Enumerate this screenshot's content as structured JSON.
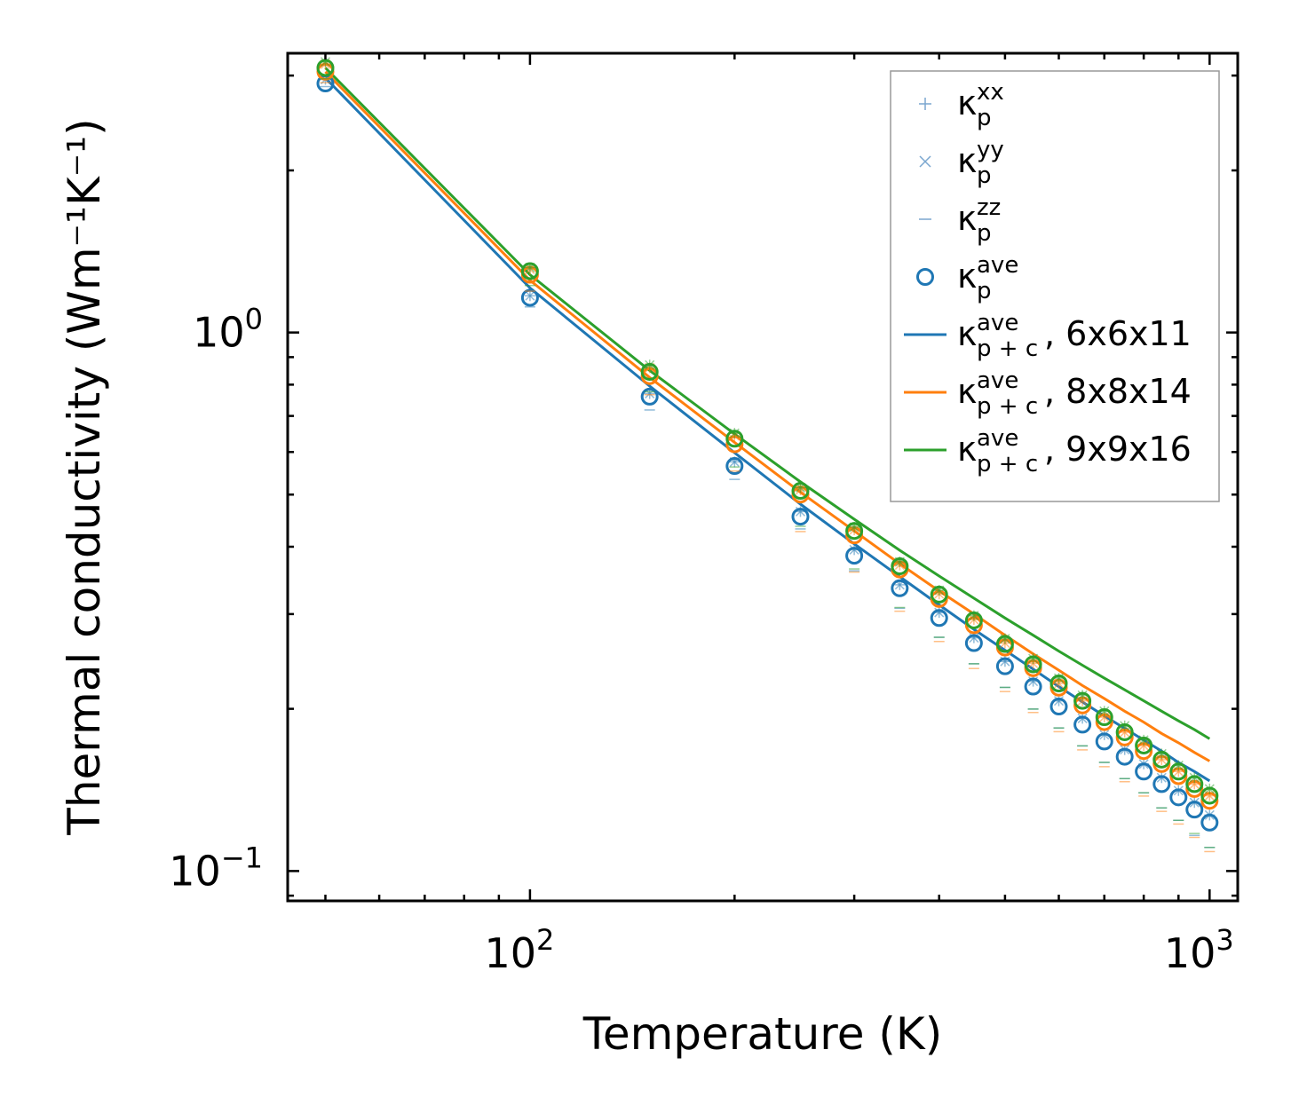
{
  "chart_data": {
    "type": "scatter",
    "xscale": "log",
    "yscale": "log",
    "xlim": [
      44,
      1100
    ],
    "ylim": [
      0.088,
      3.3
    ],
    "xlabel": "Temperature (K)",
    "ylabel": "Thermal conductivity (Wm⁻¹K⁻¹)",
    "x_ticks": [
      {
        "value": 100,
        "base": "10",
        "exp": "2"
      },
      {
        "value": 1000,
        "base": "10",
        "exp": "3"
      }
    ],
    "y_ticks": [
      {
        "value": 0.1,
        "base": "10",
        "exp": "−1"
      },
      {
        "value": 1,
        "base": "10",
        "exp": "0"
      }
    ],
    "colors": {
      "blue": "#1f77b4",
      "orange": "#ff7f0e",
      "green": "#2ca02c"
    },
    "x": [
      50,
      100,
      150,
      200,
      250,
      300,
      350,
      400,
      450,
      500,
      550,
      600,
      650,
      700,
      750,
      800,
      850,
      900,
      950,
      1000
    ],
    "points": [
      {
        "grid": "6x6x11",
        "color": "blue",
        "xx": [
          2.95,
          1.17,
          0.77,
          0.575,
          0.465,
          0.395,
          0.34,
          0.302,
          0.271,
          0.245,
          0.225,
          0.207,
          0.192,
          0.179,
          0.168,
          0.158,
          0.149,
          0.141,
          0.134,
          0.127
        ],
        "yy": [
          2.95,
          1.17,
          0.77,
          0.575,
          0.465,
          0.395,
          0.34,
          0.302,
          0.271,
          0.245,
          0.225,
          0.207,
          0.192,
          0.179,
          0.168,
          0.158,
          0.149,
          0.141,
          0.134,
          0.127
        ],
        "zz": [
          2.95,
          1.15,
          0.74,
          0.55,
          0.445,
          0.372,
          0.317,
          0.28,
          0.25,
          0.226,
          0.206,
          0.19,
          0.176,
          0.164,
          0.153,
          0.144,
          0.135,
          0.128,
          0.12,
          0.114
        ],
        "ave": [
          2.9,
          1.16,
          0.76,
          0.565,
          0.455,
          0.385,
          0.335,
          0.295,
          0.265,
          0.24,
          0.22,
          0.202,
          0.187,
          0.174,
          0.163,
          0.153,
          0.145,
          0.137,
          0.13,
          0.123
        ]
      },
      {
        "grid": "8x8x14",
        "color": "orange",
        "xx": [
          3.15,
          1.31,
          0.86,
          0.643,
          0.51,
          0.43,
          0.37,
          0.327,
          0.293,
          0.265,
          0.243,
          0.223,
          0.207,
          0.193,
          0.181,
          0.171,
          0.161,
          0.153,
          0.145,
          0.138
        ],
        "yy": [
          3.15,
          1.31,
          0.86,
          0.643,
          0.51,
          0.43,
          0.37,
          0.327,
          0.293,
          0.265,
          0.243,
          0.223,
          0.207,
          0.193,
          0.181,
          0.171,
          0.161,
          0.153,
          0.145,
          0.138
        ],
        "zz": [
          3.0,
          1.23,
          0.79,
          0.57,
          0.44,
          0.37,
          0.313,
          0.275,
          0.245,
          0.222,
          0.203,
          0.187,
          0.173,
          0.161,
          0.151,
          0.142,
          0.133,
          0.126,
          0.119,
          0.112
        ],
        "ave": [
          3.05,
          1.28,
          0.83,
          0.62,
          0.5,
          0.42,
          0.363,
          0.32,
          0.286,
          0.26,
          0.238,
          0.219,
          0.203,
          0.189,
          0.177,
          0.167,
          0.158,
          0.15,
          0.142,
          0.135
        ]
      },
      {
        "grid": "9x9x16",
        "color": "green",
        "xx": [
          3.18,
          1.32,
          0.87,
          0.65,
          0.515,
          0.435,
          0.375,
          0.332,
          0.298,
          0.27,
          0.248,
          0.228,
          0.212,
          0.198,
          0.186,
          0.175,
          0.165,
          0.157,
          0.149,
          0.142
        ],
        "yy": [
          3.18,
          1.32,
          0.87,
          0.65,
          0.515,
          0.435,
          0.375,
          0.332,
          0.298,
          0.27,
          0.248,
          0.228,
          0.212,
          0.198,
          0.186,
          0.175,
          0.165,
          0.157,
          0.149,
          0.142
        ],
        "zz": [
          3.05,
          1.26,
          0.8,
          0.58,
          0.45,
          0.375,
          0.318,
          0.28,
          0.25,
          0.226,
          0.206,
          0.19,
          0.176,
          0.164,
          0.153,
          0.144,
          0.135,
          0.128,
          0.121,
          0.114
        ],
        "ave": [
          3.1,
          1.3,
          0.845,
          0.635,
          0.508,
          0.428,
          0.368,
          0.326,
          0.292,
          0.264,
          0.242,
          0.223,
          0.207,
          0.193,
          0.181,
          0.171,
          0.161,
          0.153,
          0.145,
          0.138
        ]
      }
    ],
    "lines": [
      {
        "label_size": "6x6x11",
        "color": "blue",
        "y": [
          2.97,
          1.21,
          0.795,
          0.598,
          0.48,
          0.405,
          0.352,
          0.312,
          0.281,
          0.257,
          0.237,
          0.22,
          0.206,
          0.194,
          0.184,
          0.175,
          0.167,
          0.159,
          0.153,
          0.147
        ]
      },
      {
        "label_size": "8x8x14",
        "color": "orange",
        "y": [
          3.05,
          1.25,
          0.825,
          0.625,
          0.505,
          0.428,
          0.372,
          0.331,
          0.3,
          0.274,
          0.253,
          0.236,
          0.221,
          0.209,
          0.198,
          0.189,
          0.18,
          0.173,
          0.166,
          0.16
        ]
      },
      {
        "label_size": "9x9x16",
        "color": "green",
        "y": [
          3.1,
          1.28,
          0.85,
          0.648,
          0.528,
          0.45,
          0.394,
          0.353,
          0.321,
          0.295,
          0.274,
          0.256,
          0.241,
          0.228,
          0.217,
          0.207,
          0.198,
          0.19,
          0.183,
          0.176
        ]
      }
    ],
    "legend": {
      "placement": "top-right",
      "entries": [
        {
          "symbol": "plus",
          "color": "#7aa6cf",
          "base": "κ",
          "sub": "p",
          "sup": "xx",
          "suffix": ""
        },
        {
          "symbol": "cross",
          "color": "#7aa6cf",
          "base": "κ",
          "sub": "p",
          "sup": "yy",
          "suffix": ""
        },
        {
          "symbol": "dash",
          "color": "#7aa6cf",
          "base": "κ",
          "sub": "p",
          "sup": "zz",
          "suffix": ""
        },
        {
          "symbol": "circle",
          "color": "#1f77b4",
          "base": "κ",
          "sub": "p",
          "sup": "ave",
          "suffix": ""
        },
        {
          "symbol": "line",
          "color": "#1f77b4",
          "base": "κ",
          "sub": "p + c",
          "sup": "ave",
          "suffix": ", 6x6x11"
        },
        {
          "symbol": "line",
          "color": "#ff7f0e",
          "base": "κ",
          "sub": "p + c",
          "sup": "ave",
          "suffix": ", 8x8x14"
        },
        {
          "symbol": "line",
          "color": "#2ca02c",
          "base": "κ",
          "sub": "p + c",
          "sup": "ave",
          "suffix": ", 9x9x16"
        }
      ]
    }
  }
}
